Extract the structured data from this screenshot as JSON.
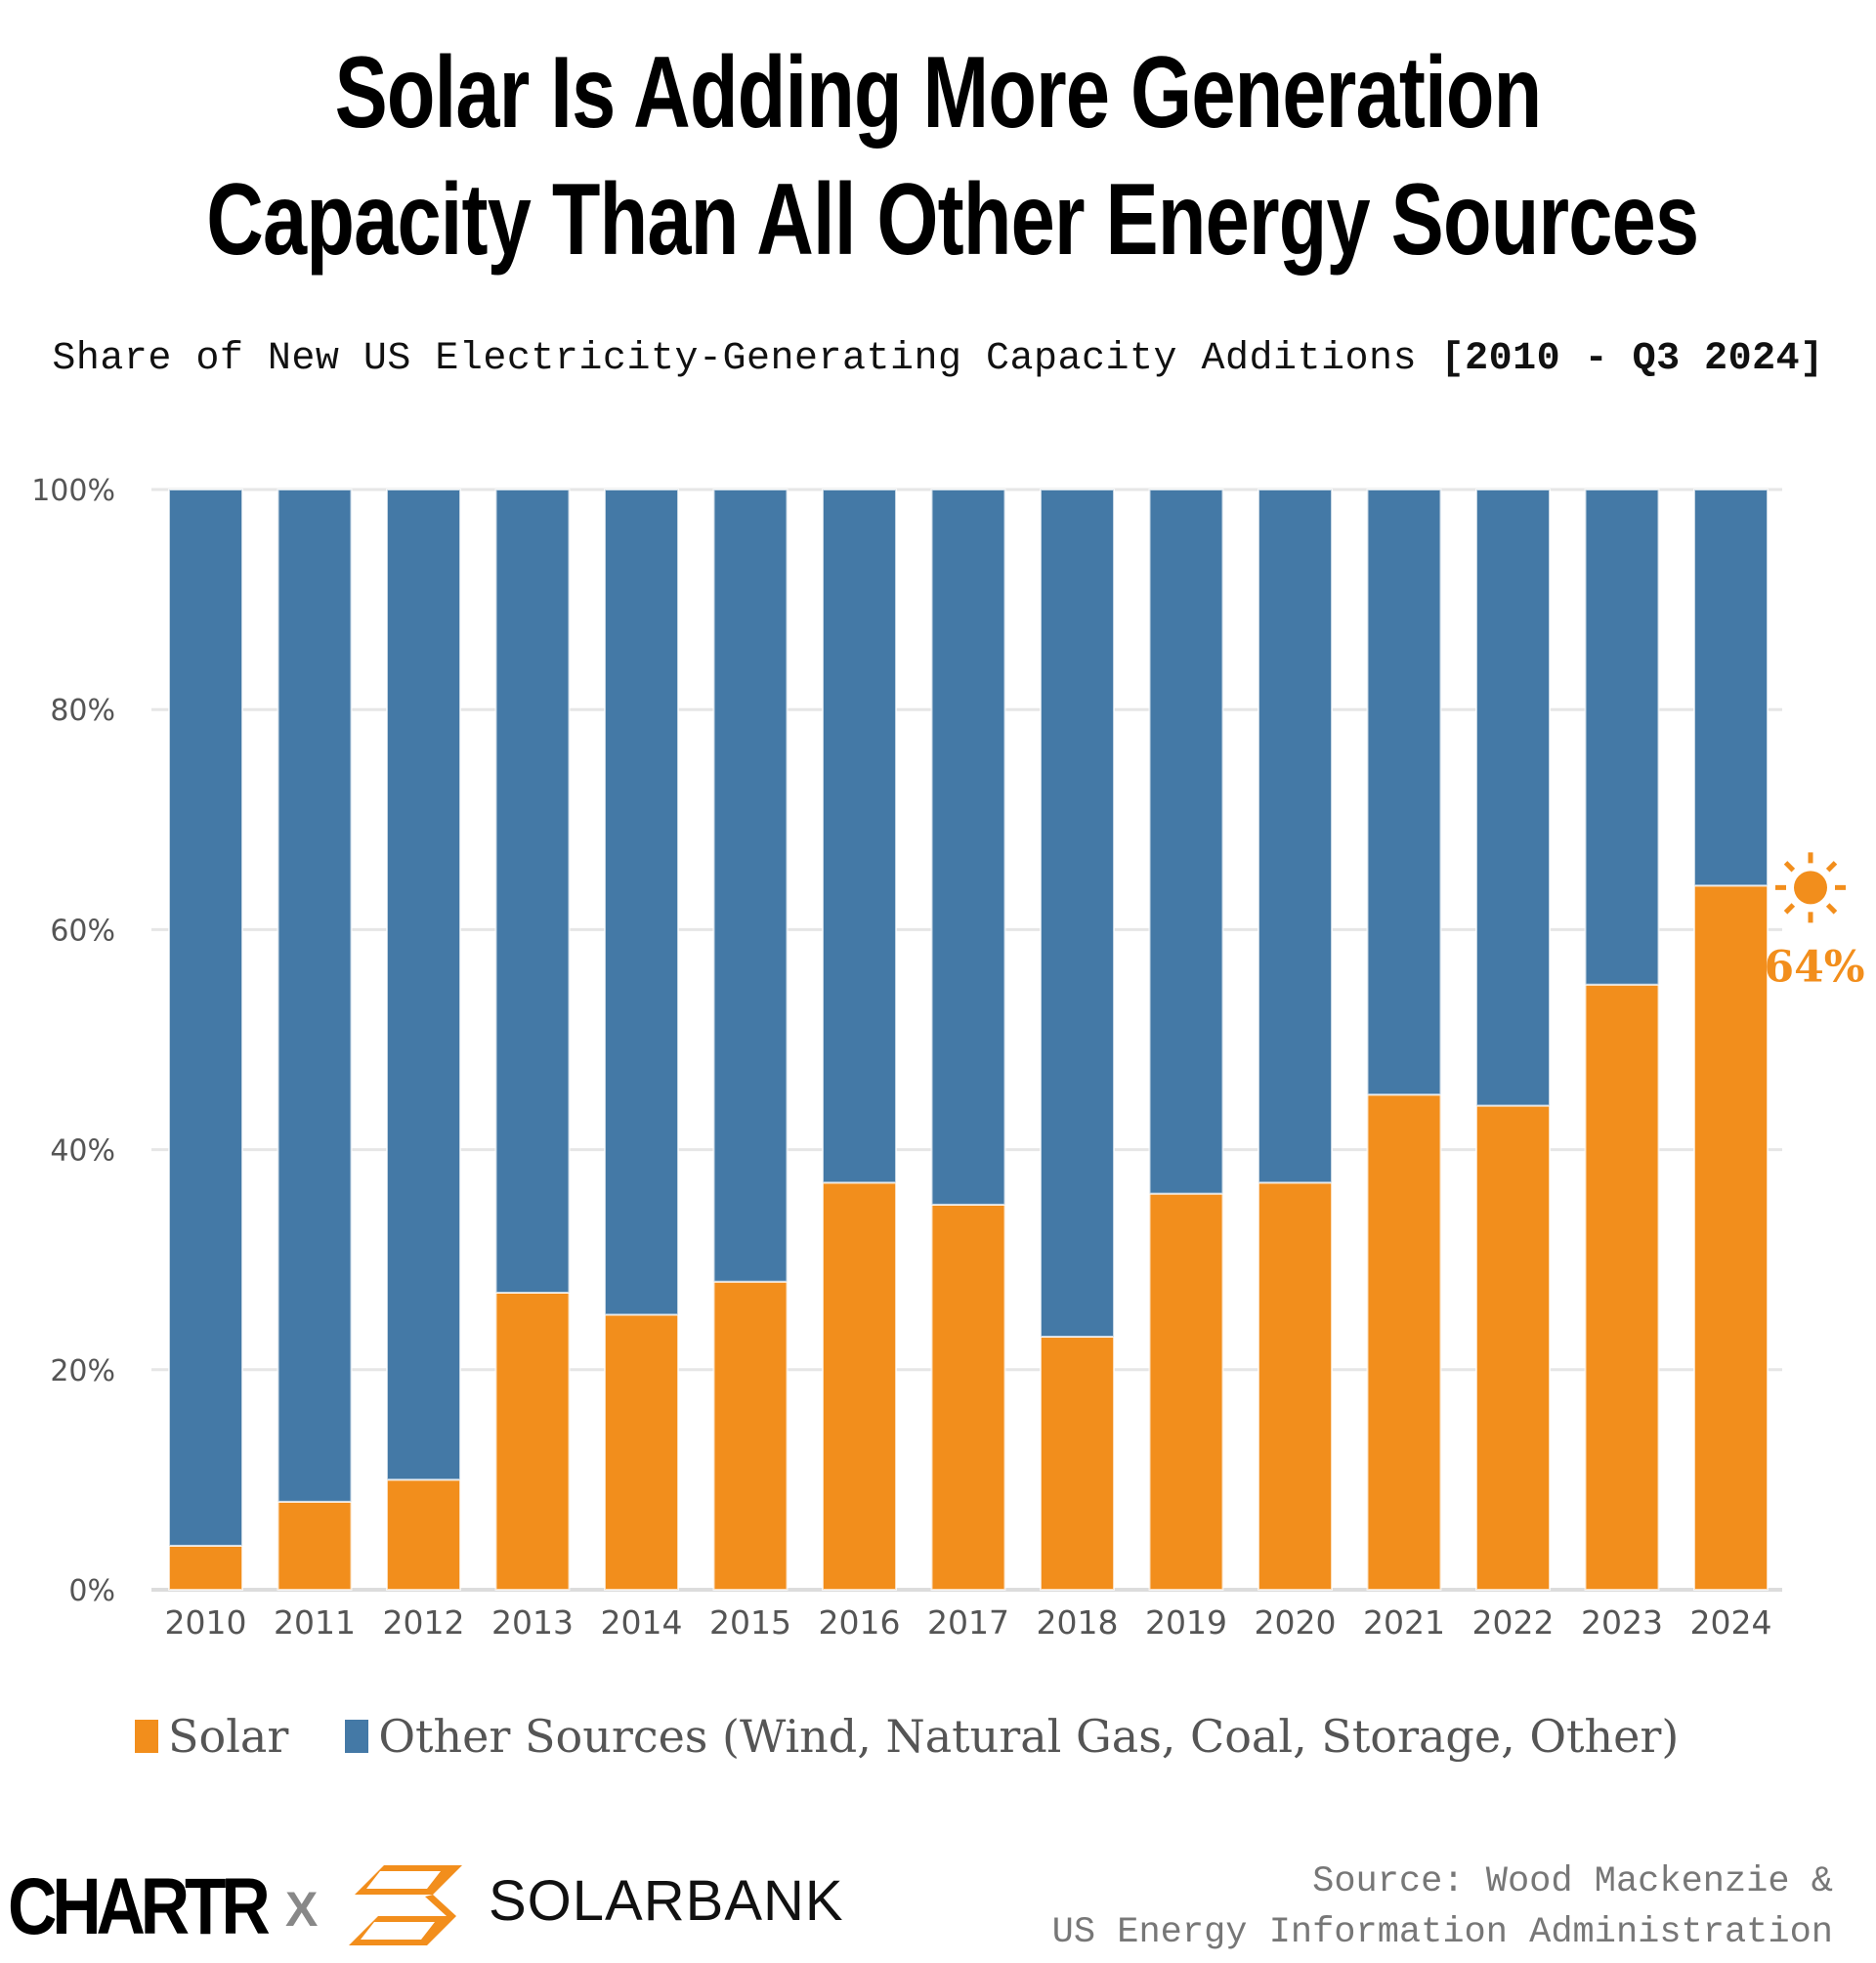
{
  "title": {
    "line1": "Solar Is Adding More Generation",
    "line2": "Capacity Than All Other Energy Sources"
  },
  "subtitle": {
    "text": "Share of New US Electricity-Generating Capacity Additions ",
    "range": "[2010 - Q3 2024]"
  },
  "colors": {
    "solar": "#f28e1c",
    "other": "#4479a6",
    "grid": "#e6e6e6",
    "axis_text": "#555555"
  },
  "chart_data": {
    "type": "bar",
    "stacked": true,
    "title": "Solar Is Adding More Generation Capacity Than All Other Energy Sources",
    "subtitle": "Share of New US Electricity-Generating Capacity Additions [2010 - Q3 2024]",
    "xlabel": "",
    "ylabel": "",
    "categories": [
      "2010",
      "2011",
      "2012",
      "2013",
      "2014",
      "2015",
      "2016",
      "2017",
      "2018",
      "2019",
      "2020",
      "2021",
      "2022",
      "2023",
      "2024"
    ],
    "series": [
      {
        "name": "Solar",
        "color": "#f28e1c",
        "values": [
          4,
          8,
          10,
          27,
          25,
          28,
          37,
          35,
          23,
          36,
          37,
          45,
          44,
          55,
          64
        ]
      },
      {
        "name": "Other Sources (Wind, Natural Gas, Coal, Storage, Other)",
        "color": "#4479a6",
        "values": [
          96,
          92,
          90,
          73,
          75,
          72,
          63,
          65,
          77,
          64,
          63,
          55,
          56,
          45,
          36
        ]
      }
    ],
    "ylim": [
      0,
      100
    ],
    "yticks": [
      0,
      20,
      40,
      60,
      80,
      100
    ],
    "ytick_labels": [
      "0%",
      "20%",
      "40%",
      "60%",
      "80%",
      "100%"
    ],
    "grid": true,
    "legend_position": "bottom",
    "annotation": {
      "category": "2024",
      "text": "64%",
      "icon": "sun-icon"
    }
  },
  "legend": {
    "items": [
      {
        "label": "Solar"
      },
      {
        "label": "Other Sources (Wind, Natural Gas, Coal, Storage, Other)"
      }
    ]
  },
  "footer": {
    "brand1": "CHARTR",
    "separator": "X",
    "brand2": "SOLARBANK",
    "source_line1": "Source: Wood Mackenzie &",
    "source_line2": "US Energy Information Administration"
  }
}
